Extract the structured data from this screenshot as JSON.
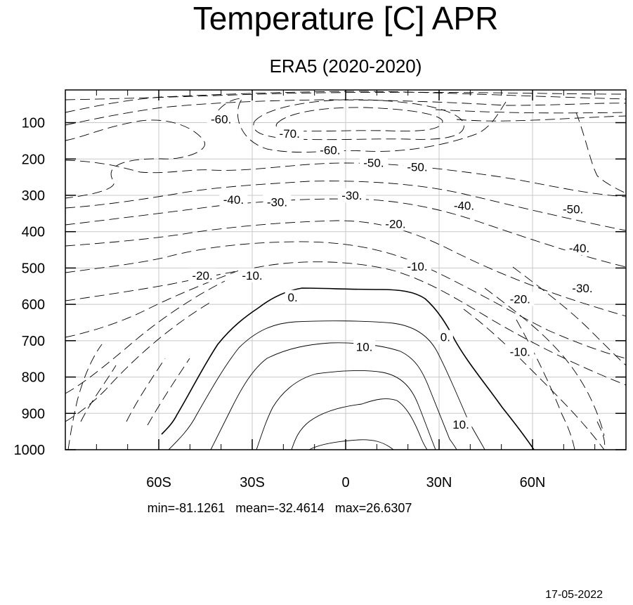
{
  "chart_data": {
    "type": "contour",
    "title": "Temperature [C] APR",
    "subtitle": "ERA5 (2020-2020)",
    "xlabel": "",
    "ylabel": "",
    "xlim": [
      -90,
      90
    ],
    "ylim": [
      1000,
      10
    ],
    "x_ticks": [
      {
        "value": -60,
        "label": "60S"
      },
      {
        "value": -30,
        "label": "30S"
      },
      {
        "value": 0,
        "label": "0"
      },
      {
        "value": 30,
        "label": "30N"
      },
      {
        "value": 60,
        "label": "60N"
      }
    ],
    "y_ticks": [
      {
        "value": 100,
        "label": "100"
      },
      {
        "value": 200,
        "label": "200"
      },
      {
        "value": 300,
        "label": "300"
      },
      {
        "value": 400,
        "label": "400"
      },
      {
        "value": 500,
        "label": "500"
      },
      {
        "value": 600,
        "label": "600"
      },
      {
        "value": 700,
        "label": "700"
      },
      {
        "value": 800,
        "label": "800"
      },
      {
        "value": 900,
        "label": "900"
      },
      {
        "value": 1000,
        "label": "1000"
      }
    ],
    "grid": true,
    "contour_interval": 10,
    "negative_style": "dashed",
    "contour_labels": [
      {
        "text": "-60.",
        "lat": -40,
        "p": 90
      },
      {
        "text": "-70.",
        "lat": -18,
        "p": 130
      },
      {
        "text": "-60.",
        "lat": -5,
        "p": 175
      },
      {
        "text": "-50.",
        "lat": 9,
        "p": 210
      },
      {
        "text": "-50.",
        "lat": 23,
        "p": 222
      },
      {
        "text": "-40.",
        "lat": -36,
        "p": 312
      },
      {
        "text": "-30.",
        "lat": -22,
        "p": 318
      },
      {
        "text": "-30.",
        "lat": 2,
        "p": 300
      },
      {
        "text": "-20.",
        "lat": 16,
        "p": 378
      },
      {
        "text": "-40.",
        "lat": 38,
        "p": 328
      },
      {
        "text": "-50.",
        "lat": 73,
        "p": 338
      },
      {
        "text": "-40.",
        "lat": 75,
        "p": 445
      },
      {
        "text": "-10.",
        "lat": -30,
        "p": 520
      },
      {
        "text": "-20.",
        "lat": -46,
        "p": 520
      },
      {
        "text": "-10.",
        "lat": 23,
        "p": 495
      },
      {
        "text": "-30.",
        "lat": 76,
        "p": 555
      },
      {
        "text": "-20.",
        "lat": 56,
        "p": 585
      },
      {
        "text": "0.",
        "lat": -17,
        "p": 580
      },
      {
        "text": "0.",
        "lat": 32,
        "p": 690
      },
      {
        "text": "10.",
        "lat": 6,
        "p": 717
      },
      {
        "text": "-10.",
        "lat": 56,
        "p": 730
      },
      {
        "text": "10.",
        "lat": 37,
        "p": 930
      }
    ],
    "statistics": {
      "min": "-81.1261",
      "mean": "-32.4614",
      "max": "26.6307"
    }
  },
  "stats_text": "min=-81.1261   mean=-32.4614   max=26.6307",
  "date": "17-05-2022"
}
